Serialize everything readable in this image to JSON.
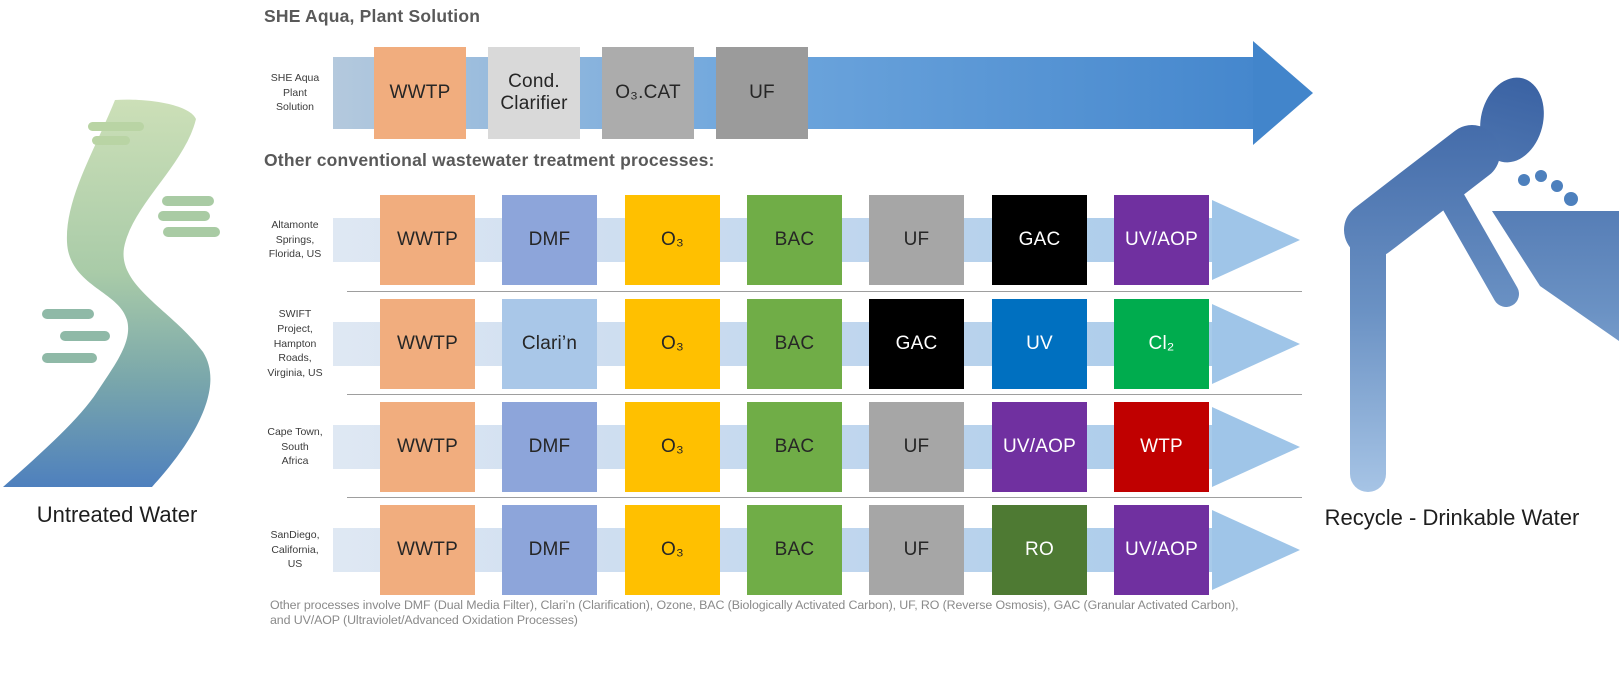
{
  "titles": {
    "she_aqua_heading": "SHE Aqua, Plant Solution",
    "other_heading": "Other conventional wastewater treatment processes:"
  },
  "endpoints": {
    "untreated": "Untreated Water",
    "recycle": "Recycle - Drinkable Water"
  },
  "palette": {
    "top_arrow_blue": "#4285cb",
    "row_arrow_blue": "#9fc5e8",
    "divider_gray": "#9e9e9e",
    "heading_gray": "#595959"
  },
  "she_aqua_row": {
    "label": "SHE Aqua\nPlant\nSolution",
    "boxes": [
      {
        "label": "WWTP",
        "bg": "#f1ad7e",
        "fg": "#262626"
      },
      {
        "label": "Cond.\nClarifier",
        "bg": "#d9d9d9",
        "fg": "#262626"
      },
      {
        "label": "O₃.CAT",
        "bg": "#acacac",
        "fg": "#262626"
      },
      {
        "label": "UF",
        "bg": "#9b9b9b",
        "fg": "#262626"
      }
    ]
  },
  "rows": [
    {
      "label": "Altamonte\nSprings,\nFlorida, US",
      "boxes": [
        {
          "label": "WWTP",
          "bg": "#f1ad7e",
          "fg": "#262626"
        },
        {
          "label": "DMF",
          "bg": "#8da5da",
          "fg": "#262626"
        },
        {
          "label": "O₃",
          "bg": "#ffc000",
          "fg": "#262626"
        },
        {
          "label": "BAC",
          "bg": "#70ad47",
          "fg": "#262626"
        },
        {
          "label": "UF",
          "bg": "#a6a6a6",
          "fg": "#262626"
        },
        {
          "label": "GAC",
          "bg": "#000000",
          "fg": "#ffffff"
        },
        {
          "label": "UV/AOP",
          "bg": "#7030a0",
          "fg": "#ffffff"
        }
      ]
    },
    {
      "label": "SWIFT\nProject,\nHampton\nRoads,\nVirginia, US",
      "boxes": [
        {
          "label": "WWTP",
          "bg": "#f1ad7e",
          "fg": "#262626"
        },
        {
          "label": "Clari’n",
          "bg": "#a9c7e8",
          "fg": "#262626"
        },
        {
          "label": "O₃",
          "bg": "#ffc000",
          "fg": "#262626"
        },
        {
          "label": "BAC",
          "bg": "#70ad47",
          "fg": "#262626"
        },
        {
          "label": "GAC",
          "bg": "#000000",
          "fg": "#ffffff"
        },
        {
          "label": "UV",
          "bg": "#0070c0",
          "fg": "#ffffff"
        },
        {
          "label": "Cl₂",
          "bg": "#00ac4e",
          "fg": "#ffffff"
        }
      ]
    },
    {
      "label": "Cape Town,\nSouth\nAfrica",
      "boxes": [
        {
          "label": "WWTP",
          "bg": "#f1ad7e",
          "fg": "#262626"
        },
        {
          "label": "DMF",
          "bg": "#8da5da",
          "fg": "#262626"
        },
        {
          "label": "O₃",
          "bg": "#ffc000",
          "fg": "#262626"
        },
        {
          "label": "BAC",
          "bg": "#70ad47",
          "fg": "#262626"
        },
        {
          "label": "UF",
          "bg": "#a6a6a6",
          "fg": "#262626"
        },
        {
          "label": "UV/AOP",
          "bg": "#7030a0",
          "fg": "#ffffff"
        },
        {
          "label": "WTP",
          "bg": "#c00000",
          "fg": "#ffffff"
        }
      ]
    },
    {
      "label": "SanDiego,\nCalifornia,\nUS",
      "boxes": [
        {
          "label": "WWTP",
          "bg": "#f1ad7e",
          "fg": "#262626"
        },
        {
          "label": "DMF",
          "bg": "#8da5da",
          "fg": "#262626"
        },
        {
          "label": "O₃",
          "bg": "#ffc000",
          "fg": "#262626"
        },
        {
          "label": "BAC",
          "bg": "#70ad47",
          "fg": "#262626"
        },
        {
          "label": "UF",
          "bg": "#a6a6a6",
          "fg": "#262626"
        },
        {
          "label": "RO",
          "bg": "#4e7a33",
          "fg": "#ffffff"
        },
        {
          "label": "UV/AOP",
          "bg": "#7030a0",
          "fg": "#ffffff"
        }
      ]
    }
  ],
  "caption": "Other processes involve DMF (Dual Media Filter), Clari’n (Clarification), Ozone, BAC (Biologically Activated Carbon), UF, RO (Reverse Osmosis), GAC (Granular Activated Carbon), and UV/AOP (Ultraviolet/Advanced Oxidation Processes)"
}
